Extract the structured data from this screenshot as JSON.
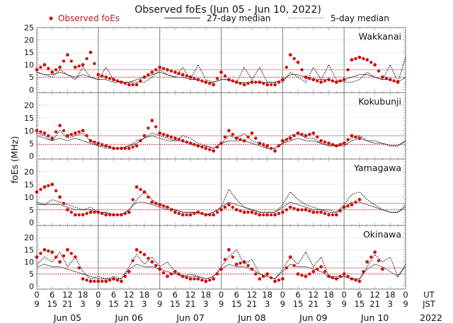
{
  "chart_data": {
    "type": "scatter",
    "title": "Observed foEs (Jun 05 - Jun 10, 2022)",
    "ylabel": "foEs (MHz)",
    "xlabel": "",
    "year_label": "2022",
    "legend": {
      "placement": "top",
      "entries": [
        {
          "label": "Observed foEs",
          "style": "red-dot",
          "color": "#d01010"
        },
        {
          "label": "27-day median",
          "style": "solid-line",
          "color": "#222222"
        },
        {
          "label": "5-day median",
          "style": "dotted-line",
          "color": "#222222"
        }
      ]
    },
    "ylim": [
      0,
      25
    ],
    "yticks": [
      0,
      5,
      10,
      15,
      20,
      25
    ],
    "panel_yticks": [
      0,
      5,
      10,
      15,
      20
    ],
    "x_hours_range": [
      0,
      144
    ],
    "x_step_hours": 3,
    "ut_ticks": [
      "0",
      "6",
      "12",
      "18"
    ],
    "jst_ticks": [
      "9",
      "15",
      "21",
      "3"
    ],
    "ut_label": "UT",
    "jst_label": "JST",
    "final_ut_tick": "0",
    "final_jst_tick": "9",
    "days": [
      "Jun 05",
      "Jun 06",
      "Jun 07",
      "Jun 08",
      "Jun 09",
      "Jun 10"
    ],
    "grid": true,
    "colors": {
      "observed": "#d01010",
      "median_line": "#111111",
      "ref_solid": "#d9a0a8",
      "ref_dotted": "#c02020",
      "day_divider": "#888888",
      "gridline": "#dddddd"
    },
    "stations": [
      {
        "name": "Wakkanai",
        "ref_solid": 8,
        "ref_dotted": 5,
        "observed": [
          8,
          10,
          7,
          9,
          14,
          9,
          10,
          15,
          6,
          5,
          4,
          3,
          2,
          2,
          5,
          7,
          9,
          8,
          7,
          6,
          5,
          4,
          3,
          2,
          7,
          4,
          3,
          2,
          3,
          3,
          2,
          2,
          4,
          14,
          11,
          5,
          4,
          3,
          4,
          3,
          4,
          12,
          13,
          12,
          10,
          5,
          4,
          3,
          null
        ],
        "median_5day": [
          7,
          6,
          5,
          8,
          6,
          4,
          9,
          5,
          4,
          9,
          4,
          3,
          3,
          3,
          3,
          5,
          8,
          6,
          5,
          9,
          4,
          10,
          4,
          3,
          4,
          4,
          3,
          9,
          4,
          9,
          3,
          3,
          3,
          7,
          5,
          3,
          9,
          4,
          10,
          4,
          3,
          3,
          4,
          7,
          5,
          4,
          10,
          3,
          13
        ],
        "median_27day": [
          7,
          6,
          6,
          7,
          6,
          5,
          6,
          5,
          4,
          4,
          3,
          3,
          3,
          4,
          5,
          6,
          7,
          6,
          5,
          5,
          4,
          4,
          3,
          3,
          4,
          4,
          3,
          3,
          3,
          3,
          3,
          3,
          4,
          6,
          6,
          5,
          4,
          4,
          4,
          3,
          4,
          5,
          6,
          6,
          5,
          4,
          4,
          3,
          5
        ]
      },
      {
        "name": "Kokubunji",
        "ref_solid": 8,
        "ref_dotted": 4.5,
        "observed": [
          10,
          9,
          7,
          12,
          8,
          9,
          10,
          6,
          5,
          4,
          3,
          3,
          3,
          4,
          8,
          14,
          9,
          8,
          7,
          6,
          5,
          4,
          3,
          2,
          5,
          10,
          7,
          6,
          9,
          5,
          4,
          2,
          6,
          7,
          9,
          8,
          9,
          6,
          5,
          4,
          5,
          8,
          7,
          null,
          null,
          null,
          null,
          null,
          null
        ],
        "median_5day": [
          9,
          8,
          6,
          10,
          7,
          8,
          9,
          6,
          4,
          3,
          3,
          3,
          4,
          6,
          7,
          9,
          8,
          7,
          6,
          8,
          7,
          5,
          4,
          3,
          5,
          8,
          7,
          9,
          6,
          5,
          3,
          3,
          5,
          8,
          9,
          7,
          7,
          5,
          4,
          4,
          5,
          7,
          8,
          6,
          6,
          5,
          4,
          4,
          6
        ],
        "median_27day": [
          8,
          7,
          6,
          7,
          6,
          7,
          6,
          5,
          4,
          4,
          3,
          3,
          4,
          5,
          7,
          8,
          7,
          6,
          6,
          6,
          5,
          4,
          4,
          3,
          5,
          6,
          6,
          6,
          5,
          4,
          3,
          3,
          5,
          6,
          7,
          6,
          6,
          5,
          4,
          4,
          4,
          6,
          7,
          6,
          5,
          5,
          4,
          4,
          6
        ]
      },
      {
        "name": "Yamagawa",
        "ref_solid": 7.5,
        "ref_dotted": 5,
        "observed": [
          12,
          14,
          15,
          10,
          5,
          3,
          3,
          4,
          4,
          3,
          3,
          3,
          4,
          14,
          12,
          8,
          7,
          6,
          4,
          3,
          3,
          4,
          3,
          3,
          5,
          7,
          5,
          4,
          4,
          3,
          3,
          3,
          4,
          6,
          5,
          5,
          4,
          4,
          3,
          3,
          6,
          7,
          9,
          null,
          null,
          null,
          null,
          null,
          null
        ],
        "median_5day": [
          8,
          7,
          9,
          8,
          7,
          6,
          5,
          6,
          4,
          4,
          3,
          3,
          5,
          9,
          12,
          9,
          7,
          6,
          5,
          4,
          4,
          4,
          3,
          4,
          6,
          13,
          9,
          6,
          5,
          4,
          4,
          4,
          7,
          12,
          9,
          7,
          6,
          5,
          5,
          4,
          7,
          11,
          12,
          9,
          7,
          5,
          4,
          4,
          7
        ],
        "median_27day": [
          7,
          7,
          7,
          7,
          6,
          5,
          5,
          5,
          4,
          4,
          3,
          3,
          5,
          8,
          8,
          7,
          6,
          5,
          5,
          4,
          4,
          4,
          3,
          4,
          6,
          8,
          7,
          6,
          5,
          4,
          4,
          4,
          6,
          8,
          7,
          6,
          5,
          5,
          4,
          4,
          6,
          8,
          8,
          7,
          6,
          5,
          4,
          4,
          6
        ]
      },
      {
        "name": "Okinawa",
        "ref_solid": 7.5,
        "ref_dotted": 5,
        "observed": [
          12,
          15,
          14,
          10,
          15,
          12,
          3,
          2,
          2,
          2,
          3,
          2,
          6,
          15,
          13,
          10,
          7,
          4,
          6,
          4,
          3,
          3,
          2,
          3,
          7,
          15,
          9,
          10,
          7,
          3,
          5,
          2,
          3,
          12,
          5,
          4,
          6,
          8,
          4,
          3,
          5,
          3,
          2,
          10,
          14,
          7,
          null,
          null,
          null
        ],
        "median_5day": [
          9,
          12,
          10,
          14,
          8,
          12,
          6,
          3,
          4,
          3,
          4,
          3,
          8,
          13,
          9,
          12,
          8,
          10,
          6,
          4,
          5,
          4,
          3,
          4,
          8,
          12,
          15,
          9,
          11,
          5,
          4,
          3,
          7,
          12,
          9,
          14,
          8,
          12,
          4,
          3,
          4,
          3,
          3,
          8,
          13,
          10,
          12,
          4,
          9
        ],
        "median_27day": [
          8,
          9,
          8,
          8,
          7,
          6,
          5,
          4,
          3,
          3,
          3,
          3,
          7,
          9,
          8,
          8,
          7,
          6,
          5,
          4,
          4,
          4,
          3,
          4,
          7,
          9,
          8,
          8,
          7,
          5,
          4,
          3,
          6,
          9,
          8,
          8,
          7,
          6,
          4,
          4,
          4,
          3,
          3,
          7,
          9,
          8,
          6,
          4,
          8
        ]
      }
    ]
  }
}
